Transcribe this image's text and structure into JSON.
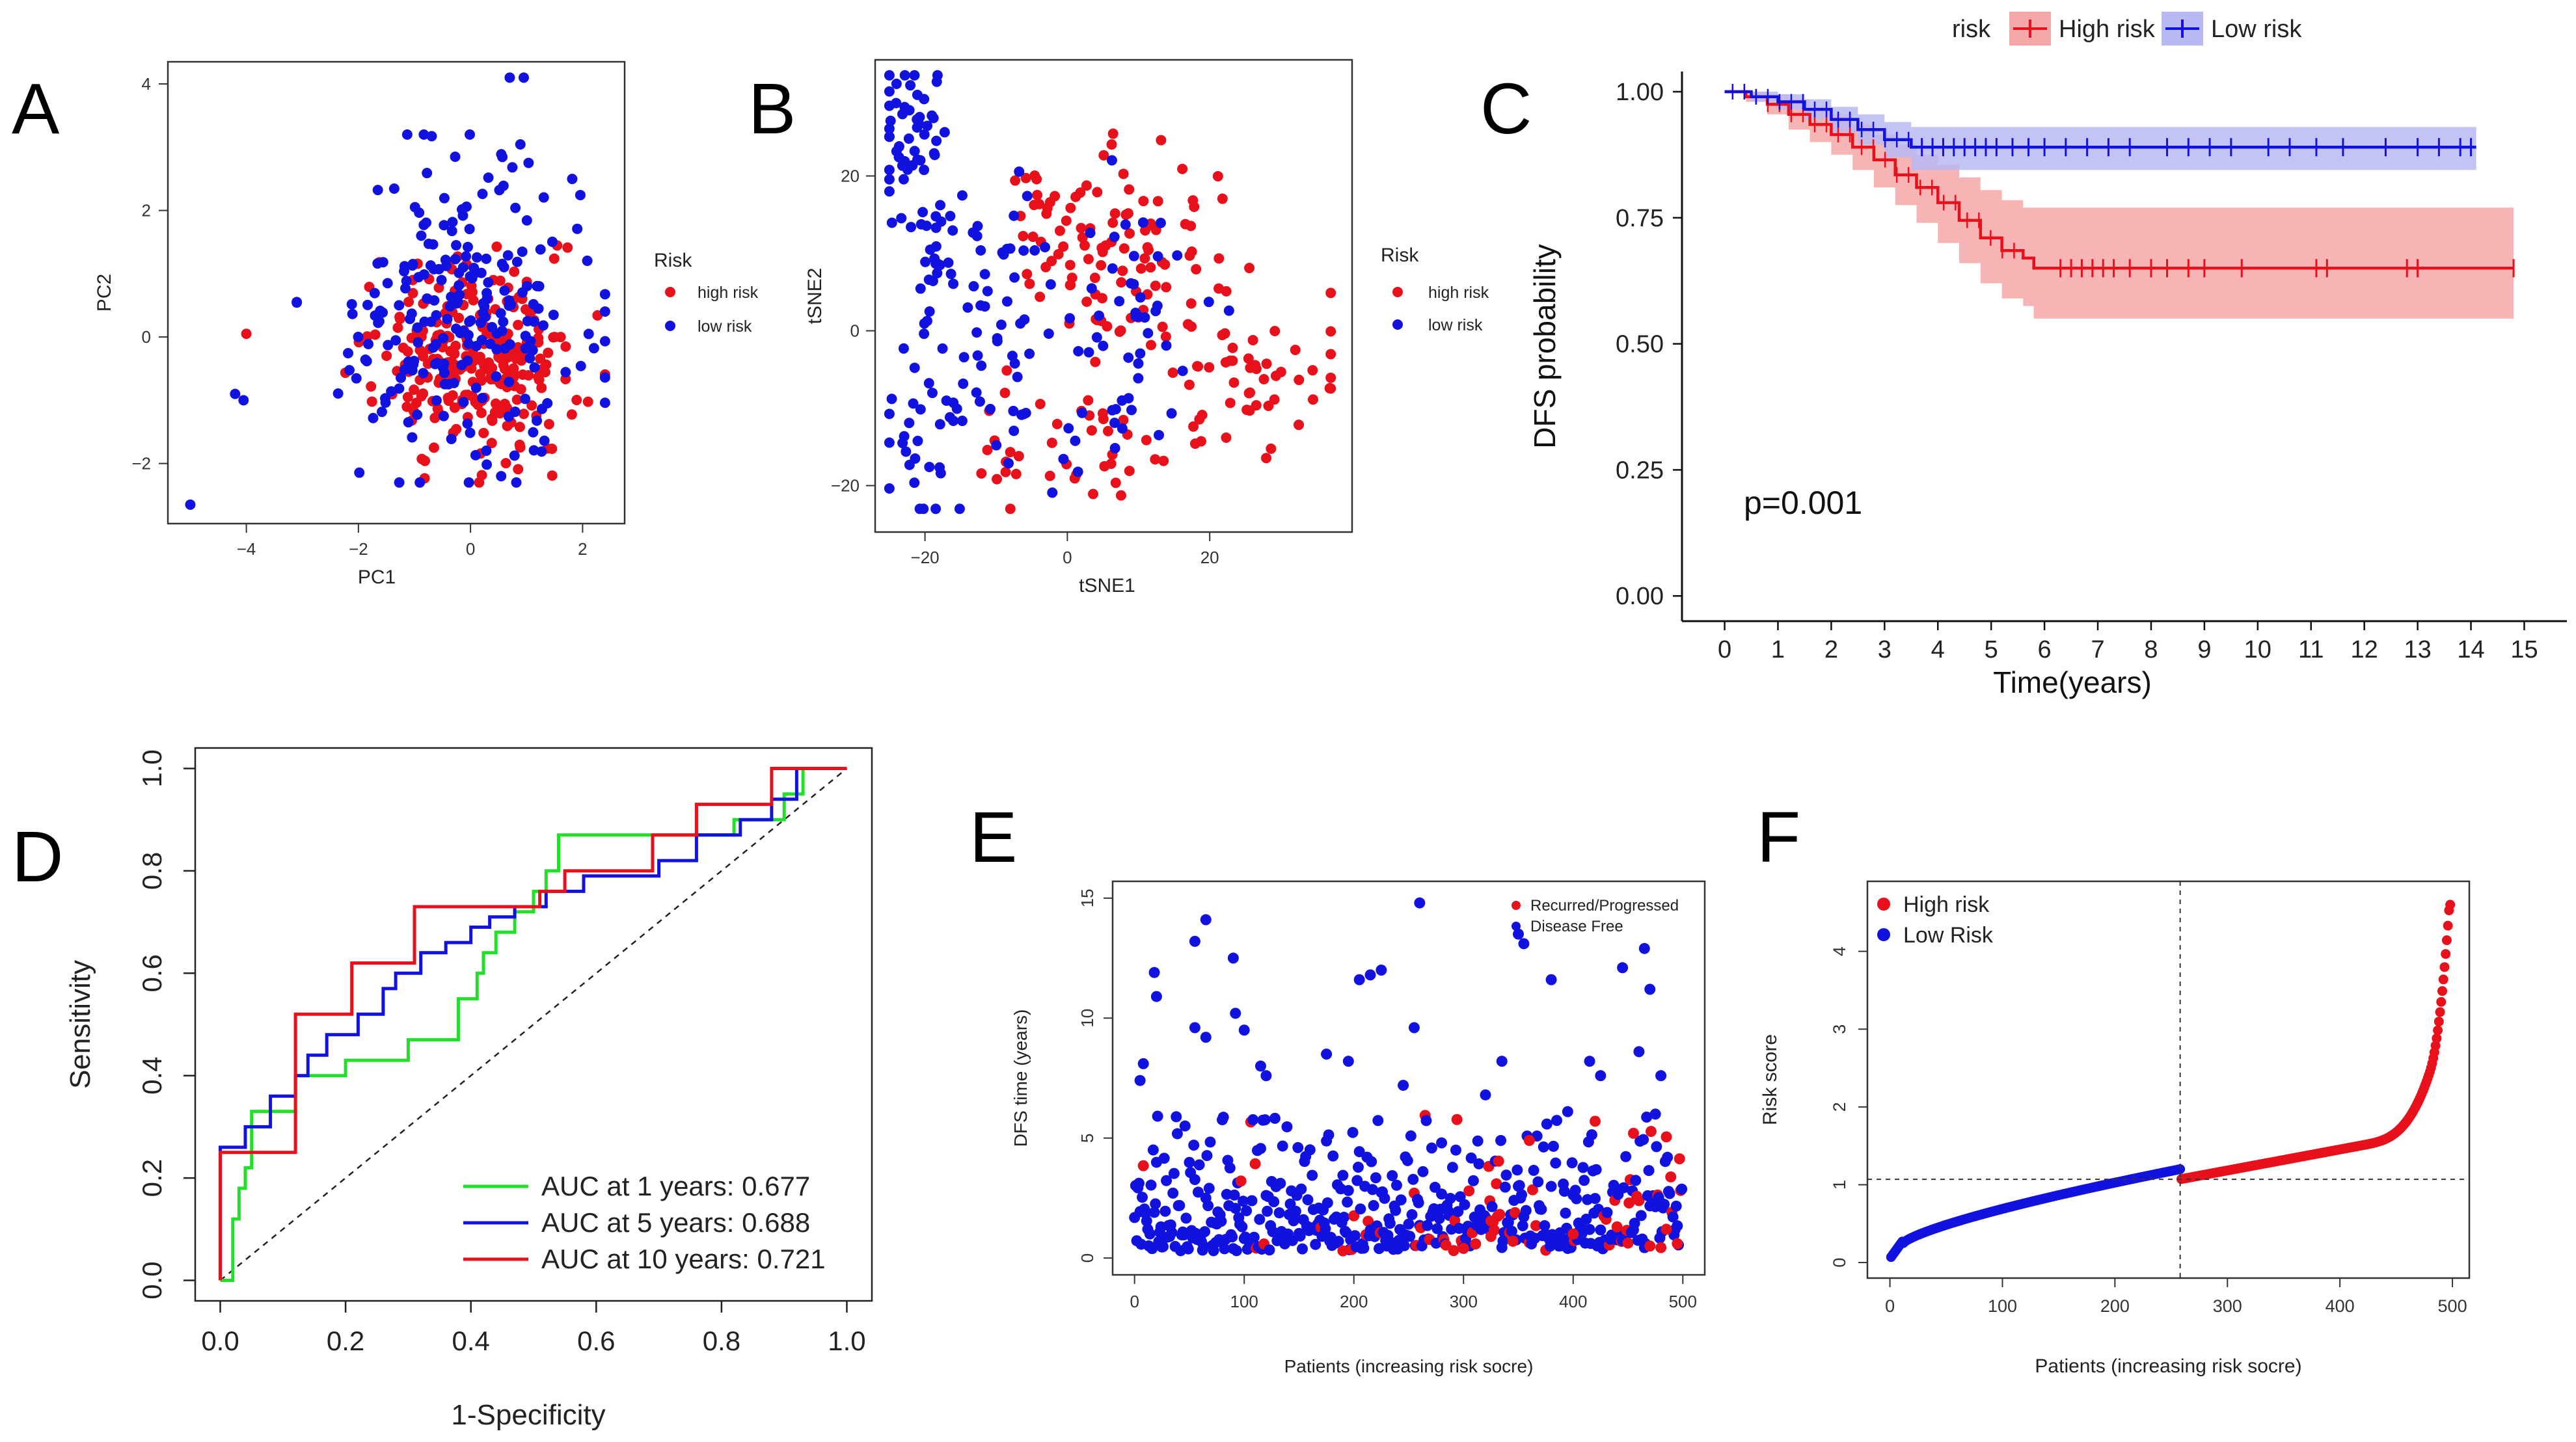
{
  "panel_letters": {
    "a": "A",
    "b": "B",
    "c": "C",
    "d": "D",
    "e": "E",
    "f": "F"
  },
  "colors": {
    "high": "#e8101a",
    "low": "#1212e0",
    "green": "#22e02a",
    "high_band": "#f5a7a7",
    "low_band": "#b8b8f2"
  },
  "chart_data": [
    {
      "id": "A",
      "type": "scatter",
      "title": "",
      "xlabel": "PC1",
      "ylabel": "PC2",
      "xlim": [
        -5.4,
        2.75
      ],
      "ylim": [
        -2.95,
        4.35
      ],
      "xticks": [
        -4,
        -2,
        0,
        2
      ],
      "yticks": [
        -2,
        0,
        2,
        4
      ],
      "legend": {
        "title": "Risk",
        "entries": [
          "high risk",
          "low risk"
        ],
        "position": "right"
      },
      "series": [
        {
          "name": "high risk",
          "n": 260,
          "center": [
            0.1,
            -0.3
          ],
          "spread": [
            0.85,
            0.75
          ]
        },
        {
          "name": "low risk",
          "n": 230,
          "center": [
            -0.2,
            0.4
          ],
          "spread": [
            1.05,
            1.15
          ]
        }
      ],
      "outliers": [
        [
          -5.0,
          -2.65
        ],
        [
          -4.2,
          -0.9
        ],
        [
          -4.05,
          -1.0
        ],
        [
          -4.0,
          0.05
        ],
        [
          0.7,
          4.1
        ],
        [
          0.95,
          4.1
        ]
      ]
    },
    {
      "id": "B",
      "type": "scatter",
      "title": "",
      "xlabel": "tSNE1",
      "ylabel": "tSNE2",
      "xlim": [
        -27,
        40
      ],
      "ylim": [
        -26,
        35
      ],
      "xticks": [
        -20,
        0,
        20
      ],
      "yticks": [
        -20,
        0,
        20
      ],
      "legend": {
        "title": "Risk",
        "entries": [
          "high risk",
          "low risk"
        ],
        "position": "right"
      },
      "series": [
        {
          "name": "high risk",
          "clusters": [
            [
              -5,
              8,
              3,
              7,
              18
            ],
            [
              5,
              10,
              5,
              7,
              45
            ],
            [
              5,
              15,
              6,
              4,
              25
            ],
            [
              16,
              12,
              4,
              4,
              15
            ],
            [
              25,
              -5,
              8,
              5,
              60
            ],
            [
              5,
              -14,
              6,
              6,
              25
            ],
            [
              -12,
              -15,
              4,
              4,
              10
            ]
          ]
        },
        {
          "name": "low risk",
          "clusters": [
            [
              -22,
              25,
              2.5,
              6,
              50
            ],
            [
              -18,
              10,
              3,
              6,
              25
            ],
            [
              -10,
              8,
              4,
              5,
              20
            ],
            [
              -20,
              -12,
              3,
              7,
              40
            ],
            [
              -8,
              -5,
              4,
              8,
              20
            ],
            [
              10,
              5,
              5,
              8,
              30
            ],
            [
              10,
              -8,
              4,
              5,
              15
            ],
            [
              0,
              -15,
              5,
              4,
              12
            ]
          ]
        }
      ]
    },
    {
      "id": "C",
      "type": "line",
      "title": "",
      "xlabel": "Time(years)",
      "ylabel": "DFS probability",
      "xlim": [
        -0.8,
        15.8
      ],
      "ylim": [
        -0.05,
        1.04
      ],
      "xticks": [
        0,
        1,
        2,
        3,
        4,
        5,
        6,
        7,
        8,
        9,
        10,
        11,
        12,
        13,
        14,
        15
      ],
      "yticks": [
        "0.00",
        "0.25",
        "0.50",
        "0.75",
        "1.00"
      ],
      "legend": {
        "title": "risk",
        "entries": [
          "High risk",
          "Low risk"
        ],
        "position": "top"
      },
      "pvalue_label": "p=0.001",
      "series": [
        {
          "name": "High risk",
          "times": [
            0,
            0.4,
            0.8,
            1.2,
            1.6,
            2.0,
            2.4,
            2.8,
            3.2,
            3.6,
            4.0,
            4.4,
            4.8,
            5.2,
            5.6,
            5.8,
            14.8
          ],
          "surv": [
            1.0,
            0.99,
            0.975,
            0.955,
            0.935,
            0.915,
            0.89,
            0.865,
            0.835,
            0.81,
            0.78,
            0.745,
            0.71,
            0.685,
            0.67,
            0.65,
            0.65
          ],
          "lower": [
            1.0,
            0.98,
            0.955,
            0.925,
            0.9,
            0.875,
            0.845,
            0.81,
            0.775,
            0.74,
            0.7,
            0.66,
            0.62,
            0.59,
            0.575,
            0.55,
            0.55
          ],
          "upper": [
            1.0,
            1.0,
            0.995,
            0.985,
            0.97,
            0.955,
            0.935,
            0.915,
            0.895,
            0.875,
            0.855,
            0.83,
            0.805,
            0.785,
            0.77,
            0.77,
            0.77
          ],
          "censor": [
            6.3,
            6.5,
            6.7,
            6.9,
            7.1,
            7.3,
            7.6,
            8.0,
            8.3,
            8.7,
            9.0,
            9.7,
            11.1,
            11.3,
            12.8,
            13.0,
            14.8
          ]
        },
        {
          "name": "Low risk",
          "times": [
            0,
            0.5,
            1.0,
            1.5,
            2.0,
            2.5,
            3.0,
            3.5,
            14.1
          ],
          "surv": [
            1.0,
            0.99,
            0.98,
            0.965,
            0.945,
            0.925,
            0.905,
            0.89,
            0.89
          ],
          "lower": [
            1.0,
            0.98,
            0.965,
            0.945,
            0.92,
            0.895,
            0.87,
            0.845,
            0.845
          ],
          "upper": [
            1.0,
            1.0,
            0.995,
            0.985,
            0.97,
            0.955,
            0.94,
            0.93,
            0.93
          ],
          "censor": [
            3.7,
            3.9,
            4.1,
            4.3,
            4.5,
            4.7,
            4.9,
            5.1,
            5.4,
            5.7,
            6.0,
            6.4,
            6.8,
            7.2,
            7.6,
            8.3,
            8.7,
            9.1,
            9.5,
            10.2,
            10.6,
            11.1,
            11.6,
            12.4,
            13.0,
            13.4,
            13.8,
            14.0
          ]
        }
      ]
    },
    {
      "id": "D",
      "type": "line",
      "title": "",
      "xlabel": "1-Specificity",
      "ylabel": "Sensitivity",
      "xlim": [
        -0.04,
        1.04
      ],
      "ylim": [
        -0.04,
        1.04
      ],
      "xticks": [
        "0.0",
        "0.2",
        "0.4",
        "0.6",
        "0.8",
        "1.0"
      ],
      "yticks": [
        "0.0",
        "0.2",
        "0.4",
        "0.6",
        "0.8",
        "1.0"
      ],
      "legend": {
        "entries": [
          "AUC at 1 years: 0.677",
          "AUC at 5 years: 0.688",
          "AUC at 10 years: 0.721"
        ],
        "position": "bottom-right"
      },
      "series": [
        {
          "name": "AUC at 1 years: 0.677",
          "color": "green",
          "x": [
            0,
            0.02,
            0.02,
            0.03,
            0.03,
            0.04,
            0.04,
            0.05,
            0.05,
            0.12,
            0.12,
            0.2,
            0.2,
            0.3,
            0.3,
            0.38,
            0.38,
            0.41,
            0.41,
            0.42,
            0.42,
            0.44,
            0.44,
            0.47,
            0.47,
            0.5,
            0.5,
            0.52,
            0.52,
            0.54,
            0.54,
            0.76,
            0.76,
            0.82,
            0.82,
            0.9,
            0.9,
            0.93,
            0.93,
            1.0
          ],
          "y": [
            0,
            0,
            0.12,
            0.12,
            0.18,
            0.18,
            0.22,
            0.22,
            0.33,
            0.33,
            0.4,
            0.4,
            0.43,
            0.43,
            0.47,
            0.47,
            0.55,
            0.55,
            0.6,
            0.6,
            0.64,
            0.64,
            0.68,
            0.68,
            0.72,
            0.72,
            0.76,
            0.76,
            0.8,
            0.8,
            0.87,
            0.87,
            0.87,
            0.87,
            0.9,
            0.9,
            0.95,
            0.95,
            1.0,
            1.0
          ]
        },
        {
          "name": "AUC at 5 years: 0.688",
          "color": "low",
          "x": [
            0,
            0,
            0.04,
            0.04,
            0.08,
            0.08,
            0.12,
            0.12,
            0.14,
            0.14,
            0.17,
            0.17,
            0.22,
            0.22,
            0.26,
            0.26,
            0.28,
            0.28,
            0.32,
            0.32,
            0.36,
            0.36,
            0.4,
            0.4,
            0.43,
            0.43,
            0.47,
            0.47,
            0.52,
            0.52,
            0.58,
            0.58,
            0.7,
            0.7,
            0.76,
            0.76,
            0.83,
            0.83,
            0.88,
            0.88,
            0.92,
            0.92,
            1.0
          ],
          "y": [
            0,
            0.26,
            0.26,
            0.3,
            0.3,
            0.36,
            0.36,
            0.4,
            0.4,
            0.44,
            0.44,
            0.48,
            0.48,
            0.52,
            0.52,
            0.57,
            0.57,
            0.6,
            0.6,
            0.64,
            0.64,
            0.66,
            0.66,
            0.69,
            0.69,
            0.71,
            0.71,
            0.73,
            0.73,
            0.76,
            0.76,
            0.79,
            0.79,
            0.82,
            0.82,
            0.87,
            0.87,
            0.9,
            0.9,
            0.94,
            0.94,
            1.0,
            1.0
          ]
        },
        {
          "name": "AUC at 10 years: 0.721",
          "color": "high",
          "x": [
            0,
            0,
            0.12,
            0.12,
            0.21,
            0.21,
            0.31,
            0.31,
            0.51,
            0.51,
            0.55,
            0.55,
            0.69,
            0.69,
            0.76,
            0.76,
            0.88,
            0.88,
            1.0
          ],
          "y": [
            0,
            0.25,
            0.25,
            0.52,
            0.52,
            0.62,
            0.62,
            0.73,
            0.73,
            0.76,
            0.76,
            0.8,
            0.8,
            0.87,
            0.87,
            0.93,
            0.93,
            1.0,
            1.0
          ]
        }
      ],
      "diagonal": true
    },
    {
      "id": "E",
      "type": "scatter",
      "title": "",
      "xlabel": "Patients (increasing risk socre)",
      "ylabel": "DFS time (years)",
      "xlim": [
        -20,
        520
      ],
      "ylim": [
        -0.7,
        15.7
      ],
      "xticks": [
        0,
        100,
        200,
        300,
        400,
        500
      ],
      "yticks": [
        0,
        5,
        10,
        15
      ],
      "legend": {
        "entries": [
          "Recurred/Progressed",
          "Disease Free"
        ],
        "position": "top-right"
      },
      "n_patients": 500
    },
    {
      "id": "F",
      "type": "scatter",
      "title": "",
      "xlabel": "Patients (increasing risk socre)",
      "ylabel": "Risk score",
      "xlim": [
        -20,
        515
      ],
      "ylim": [
        -0.2,
        4.9
      ],
      "xticks": [
        0,
        100,
        200,
        300,
        400,
        500
      ],
      "yticks": [
        0,
        1,
        2,
        3,
        4
      ],
      "legend": {
        "entries": [
          "High risk",
          "Low Risk"
        ],
        "position": "top-left"
      },
      "cutoff": {
        "x": 258,
        "y": 1.07
      },
      "n_patients": 500
    }
  ]
}
